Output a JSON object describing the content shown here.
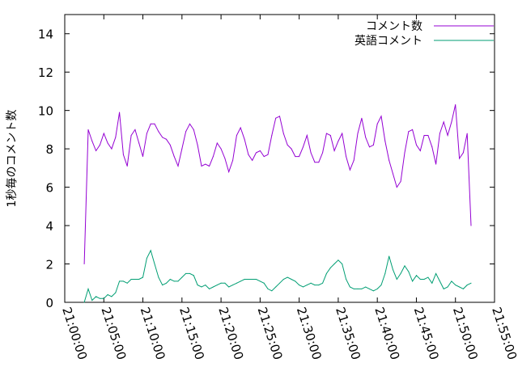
{
  "chart_data": {
    "type": "line",
    "title": "",
    "ylabel": "1秒毎のコメント数",
    "xlabel": "",
    "ylim": [
      0,
      15
    ],
    "yticks": [
      0,
      2,
      4,
      6,
      8,
      10,
      12,
      14
    ],
    "xlim_minutes": [
      0,
      55
    ],
    "xtick_labels": [
      "21:00:00",
      "21:05:00",
      "21:10:00",
      "21:15:00",
      "21:20:00",
      "21:25:00",
      "21:30:00",
      "21:35:00",
      "21:40:00",
      "21:45:00",
      "21:50:00",
      "21:55:00"
    ],
    "legend_position": "top-right",
    "series": [
      {
        "name": "コメント数",
        "color": "#9400d3",
        "points": [
          [
            "21:02:30",
            2.0
          ],
          [
            "21:03:00",
            9.0
          ],
          [
            "21:03:30",
            8.4
          ],
          [
            "21:04:00",
            7.9
          ],
          [
            "21:04:30",
            8.2
          ],
          [
            "21:05:00",
            8.8
          ],
          [
            "21:05:30",
            8.3
          ],
          [
            "21:06:00",
            8.0
          ],
          [
            "21:06:30",
            8.6
          ],
          [
            "21:07:00",
            9.9
          ],
          [
            "21:07:30",
            7.7
          ],
          [
            "21:08:00",
            7.1
          ],
          [
            "21:08:30",
            8.7
          ],
          [
            "21:09:00",
            9.0
          ],
          [
            "21:09:30",
            8.3
          ],
          [
            "21:10:00",
            7.6
          ],
          [
            "21:10:30",
            8.8
          ],
          [
            "21:11:00",
            9.3
          ],
          [
            "21:11:30",
            9.3
          ],
          [
            "21:12:00",
            8.9
          ],
          [
            "21:12:30",
            8.6
          ],
          [
            "21:13:00",
            8.5
          ],
          [
            "21:13:30",
            8.2
          ],
          [
            "21:14:00",
            7.6
          ],
          [
            "21:14:30",
            7.1
          ],
          [
            "21:15:00",
            8.0
          ],
          [
            "21:15:30",
            8.9
          ],
          [
            "21:16:00",
            9.3
          ],
          [
            "21:16:30",
            9.0
          ],
          [
            "21:17:00",
            8.2
          ],
          [
            "21:17:30",
            7.1
          ],
          [
            "21:18:00",
            7.2
          ],
          [
            "21:18:30",
            7.1
          ],
          [
            "21:19:00",
            7.6
          ],
          [
            "21:19:30",
            8.3
          ],
          [
            "21:20:00",
            8.0
          ],
          [
            "21:20:30",
            7.5
          ],
          [
            "21:21:00",
            6.8
          ],
          [
            "21:21:30",
            7.4
          ],
          [
            "21:22:00",
            8.7
          ],
          [
            "21:22:30",
            9.1
          ],
          [
            "21:23:00",
            8.5
          ],
          [
            "21:23:30",
            7.7
          ],
          [
            "21:24:00",
            7.4
          ],
          [
            "21:24:30",
            7.8
          ],
          [
            "21:25:00",
            7.9
          ],
          [
            "21:25:30",
            7.6
          ],
          [
            "21:26:00",
            7.7
          ],
          [
            "21:26:30",
            8.7
          ],
          [
            "21:27:00",
            9.6
          ],
          [
            "21:27:30",
            9.7
          ],
          [
            "21:28:00",
            8.8
          ],
          [
            "21:28:30",
            8.2
          ],
          [
            "21:29:00",
            8.0
          ],
          [
            "21:29:30",
            7.6
          ],
          [
            "21:30:00",
            7.6
          ],
          [
            "21:30:30",
            8.1
          ],
          [
            "21:31:00",
            8.7
          ],
          [
            "21:31:30",
            7.8
          ],
          [
            "21:32:00",
            7.3
          ],
          [
            "21:32:30",
            7.3
          ],
          [
            "21:33:00",
            7.8
          ],
          [
            "21:33:30",
            8.8
          ],
          [
            "21:34:00",
            8.7
          ],
          [
            "21:34:30",
            7.9
          ],
          [
            "21:35:00",
            8.4
          ],
          [
            "21:35:30",
            8.8
          ],
          [
            "21:36:00",
            7.6
          ],
          [
            "21:36:30",
            6.9
          ],
          [
            "21:37:00",
            7.4
          ],
          [
            "21:37:30",
            8.8
          ],
          [
            "21:38:00",
            9.6
          ],
          [
            "21:38:30",
            8.6
          ],
          [
            "21:39:00",
            8.1
          ],
          [
            "21:39:30",
            8.2
          ],
          [
            "21:40:00",
            9.3
          ],
          [
            "21:40:30",
            9.7
          ],
          [
            "21:41:00",
            8.4
          ],
          [
            "21:41:30",
            7.4
          ],
          [
            "21:42:00",
            6.7
          ],
          [
            "21:42:30",
            6.0
          ],
          [
            "21:43:00",
            6.3
          ],
          [
            "21:43:30",
            7.8
          ],
          [
            "21:44:00",
            8.9
          ],
          [
            "21:44:30",
            9.0
          ],
          [
            "21:45:00",
            8.2
          ],
          [
            "21:45:30",
            7.9
          ],
          [
            "21:46:00",
            8.7
          ],
          [
            "21:46:30",
            8.7
          ],
          [
            "21:47:00",
            8.1
          ],
          [
            "21:47:30",
            7.2
          ],
          [
            "21:48:00",
            8.8
          ],
          [
            "21:48:30",
            9.4
          ],
          [
            "21:49:00",
            8.7
          ],
          [
            "21:49:30",
            9.4
          ],
          [
            "21:50:00",
            10.3
          ],
          [
            "21:50:30",
            7.5
          ],
          [
            "21:51:00",
            7.8
          ],
          [
            "21:51:30",
            8.8
          ],
          [
            "21:52:00",
            4.0
          ]
        ]
      },
      {
        "name": "英語コメント",
        "color": "#009e73",
        "points": [
          [
            "21:02:30",
            0.0
          ],
          [
            "21:03:00",
            0.7
          ],
          [
            "21:03:30",
            0.1
          ],
          [
            "21:04:00",
            0.3
          ],
          [
            "21:04:30",
            0.2
          ],
          [
            "21:05:00",
            0.2
          ],
          [
            "21:05:30",
            0.4
          ],
          [
            "21:06:00",
            0.3
          ],
          [
            "21:06:30",
            0.5
          ],
          [
            "21:07:00",
            1.1
          ],
          [
            "21:07:30",
            1.1
          ],
          [
            "21:08:00",
            1.0
          ],
          [
            "21:08:30",
            1.2
          ],
          [
            "21:09:00",
            1.2
          ],
          [
            "21:09:30",
            1.2
          ],
          [
            "21:10:00",
            1.3
          ],
          [
            "21:10:30",
            2.3
          ],
          [
            "21:11:00",
            2.7
          ],
          [
            "21:11:30",
            2.0
          ],
          [
            "21:12:00",
            1.3
          ],
          [
            "21:12:30",
            0.9
          ],
          [
            "21:13:00",
            1.0
          ],
          [
            "21:13:30",
            1.2
          ],
          [
            "21:14:00",
            1.1
          ],
          [
            "21:14:30",
            1.1
          ],
          [
            "21:15:00",
            1.3
          ],
          [
            "21:15:30",
            1.5
          ],
          [
            "21:16:00",
            1.5
          ],
          [
            "21:16:30",
            1.4
          ],
          [
            "21:17:00",
            0.9
          ],
          [
            "21:17:30",
            0.8
          ],
          [
            "21:18:00",
            0.9
          ],
          [
            "21:18:30",
            0.7
          ],
          [
            "21:19:00",
            0.8
          ],
          [
            "21:19:30",
            0.9
          ],
          [
            "21:20:00",
            1.0
          ],
          [
            "21:20:30",
            1.0
          ],
          [
            "21:21:00",
            0.8
          ],
          [
            "21:21:30",
            0.9
          ],
          [
            "21:22:00",
            1.0
          ],
          [
            "21:22:30",
            1.1
          ],
          [
            "21:23:00",
            1.2
          ],
          [
            "21:23:30",
            1.2
          ],
          [
            "21:24:00",
            1.2
          ],
          [
            "21:24:30",
            1.2
          ],
          [
            "21:25:00",
            1.1
          ],
          [
            "21:25:30",
            1.0
          ],
          [
            "21:26:00",
            0.7
          ],
          [
            "21:26:30",
            0.6
          ],
          [
            "21:27:00",
            0.8
          ],
          [
            "21:27:30",
            1.0
          ],
          [
            "21:28:00",
            1.2
          ],
          [
            "21:28:30",
            1.3
          ],
          [
            "21:29:00",
            1.2
          ],
          [
            "21:29:30",
            1.1
          ],
          [
            "21:30:00",
            0.9
          ],
          [
            "21:30:30",
            0.8
          ],
          [
            "21:31:00",
            0.9
          ],
          [
            "21:31:30",
            1.0
          ],
          [
            "21:32:00",
            0.9
          ],
          [
            "21:32:30",
            0.9
          ],
          [
            "21:33:00",
            1.0
          ],
          [
            "21:33:30",
            1.5
          ],
          [
            "21:34:00",
            1.8
          ],
          [
            "21:34:30",
            2.0
          ],
          [
            "21:35:00",
            2.2
          ],
          [
            "21:35:30",
            2.0
          ],
          [
            "21:36:00",
            1.2
          ],
          [
            "21:36:30",
            0.8
          ],
          [
            "21:37:00",
            0.7
          ],
          [
            "21:37:30",
            0.7
          ],
          [
            "21:38:00",
            0.7
          ],
          [
            "21:38:30",
            0.8
          ],
          [
            "21:39:00",
            0.7
          ],
          [
            "21:39:30",
            0.6
          ],
          [
            "21:40:00",
            0.7
          ],
          [
            "21:40:30",
            0.9
          ],
          [
            "21:41:00",
            1.5
          ],
          [
            "21:41:30",
            2.4
          ],
          [
            "21:42:00",
            1.7
          ],
          [
            "21:42:30",
            1.2
          ],
          [
            "21:43:00",
            1.5
          ],
          [
            "21:43:30",
            1.9
          ],
          [
            "21:44:00",
            1.6
          ],
          [
            "21:44:30",
            1.1
          ],
          [
            "21:45:00",
            1.4
          ],
          [
            "21:45:30",
            1.2
          ],
          [
            "21:46:00",
            1.2
          ],
          [
            "21:46:30",
            1.3
          ],
          [
            "21:47:00",
            1.0
          ],
          [
            "21:47:30",
            1.5
          ],
          [
            "21:48:00",
            1.1
          ],
          [
            "21:48:30",
            0.7
          ],
          [
            "21:49:00",
            0.8
          ],
          [
            "21:49:30",
            1.1
          ],
          [
            "21:50:00",
            0.9
          ],
          [
            "21:50:30",
            0.8
          ],
          [
            "21:51:00",
            0.7
          ],
          [
            "21:51:30",
            0.9
          ],
          [
            "21:52:00",
            1.0
          ]
        ]
      }
    ]
  }
}
